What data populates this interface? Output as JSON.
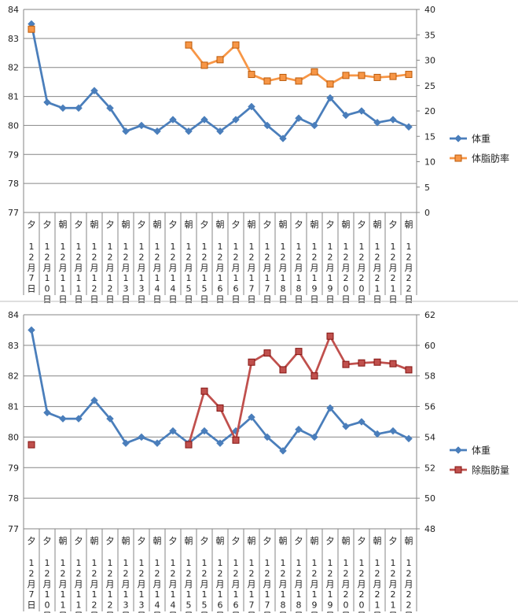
{
  "chart_data": [
    {
      "type": "line",
      "categories": [
        {
          "period": "夕",
          "month": "12",
          "day": "7"
        },
        {
          "period": "夕",
          "month": "12",
          "day": "10"
        },
        {
          "period": "朝",
          "month": "12",
          "day": "11"
        },
        {
          "period": "夕",
          "month": "12",
          "day": "11"
        },
        {
          "period": "朝",
          "month": "12",
          "day": "12"
        },
        {
          "period": "夕",
          "month": "12",
          "day": "12"
        },
        {
          "period": "朝",
          "month": "12",
          "day": "13"
        },
        {
          "period": "夕",
          "month": "12",
          "day": "13"
        },
        {
          "period": "朝",
          "month": "12",
          "day": "14"
        },
        {
          "period": "夕",
          "month": "12",
          "day": "14"
        },
        {
          "period": "朝",
          "month": "12",
          "day": "15"
        },
        {
          "period": "夕",
          "month": "12",
          "day": "15"
        },
        {
          "period": "朝",
          "month": "12",
          "day": "16"
        },
        {
          "period": "夕",
          "month": "12",
          "day": "16"
        },
        {
          "period": "朝",
          "month": "12",
          "day": "17"
        },
        {
          "period": "夕",
          "month": "12",
          "day": "17"
        },
        {
          "period": "朝",
          "month": "12",
          "day": "18"
        },
        {
          "period": "夕",
          "month": "12",
          "day": "18"
        },
        {
          "period": "朝",
          "month": "12",
          "day": "19"
        },
        {
          "period": "夕",
          "month": "12",
          "day": "19"
        },
        {
          "period": "朝",
          "month": "12",
          "day": "20"
        },
        {
          "period": "夕",
          "month": "12",
          "day": "20"
        },
        {
          "period": "朝",
          "month": "12",
          "day": "21"
        },
        {
          "period": "夕",
          "month": "12",
          "day": "21"
        },
        {
          "period": "朝",
          "month": "12",
          "day": "22"
        }
      ],
      "month_unit": "月",
      "day_unit": "日",
      "y_left": {
        "min": 77,
        "max": 84,
        "ticks": [
          77,
          78,
          79,
          80,
          81,
          82,
          83,
          84
        ]
      },
      "y_right": {
        "min": 0,
        "max": 40,
        "ticks": [
          0,
          5,
          10,
          15,
          20,
          25,
          30,
          35,
          40
        ]
      },
      "series": [
        {
          "name": "体重",
          "axis": "left",
          "color": "#4a7ebb",
          "marker": "diamond",
          "values": [
            83.5,
            80.8,
            80.6,
            80.6,
            81.2,
            80.6,
            79.8,
            80.0,
            79.8,
            80.2,
            79.8,
            80.2,
            79.8,
            80.2,
            80.65,
            80.0,
            79.55,
            80.25,
            80.0,
            80.95,
            80.35,
            80.5,
            80.1,
            80.2,
            79.95
          ]
        },
        {
          "name": "体脂肪率",
          "axis": "right",
          "color": "#f79646",
          "marker": "square",
          "values": [
            36.1,
            null,
            null,
            null,
            null,
            null,
            null,
            null,
            null,
            null,
            33.0,
            29.0,
            30.1,
            33.0,
            27.2,
            25.9,
            26.6,
            25.9,
            27.7,
            25.3,
            27.0,
            27.0,
            26.6,
            26.8,
            27.2
          ]
        }
      ],
      "legend": "right"
    },
    {
      "type": "line",
      "categories": "same",
      "y_left": {
        "min": 77,
        "max": 84,
        "ticks": [
          77,
          78,
          79,
          80,
          81,
          82,
          83,
          84
        ]
      },
      "y_right": {
        "min": 48,
        "max": 62,
        "ticks": [
          48,
          50,
          52,
          54,
          56,
          58,
          60,
          62
        ]
      },
      "series": [
        {
          "name": "体重",
          "axis": "left",
          "color": "#4a7ebb",
          "marker": "diamond",
          "values": [
            83.5,
            80.8,
            80.6,
            80.6,
            81.2,
            80.6,
            79.8,
            80.0,
            79.8,
            80.2,
            79.8,
            80.2,
            79.8,
            80.2,
            80.65,
            80.0,
            79.55,
            80.25,
            80.0,
            80.95,
            80.35,
            80.5,
            80.1,
            80.2,
            79.95
          ]
        },
        {
          "name": "除脂肪量",
          "axis": "right",
          "color": "#c0504d",
          "marker": "square",
          "values": [
            53.5,
            null,
            null,
            null,
            null,
            null,
            null,
            null,
            null,
            null,
            53.5,
            57.0,
            55.9,
            53.8,
            58.9,
            59.5,
            58.4,
            59.6,
            58.0,
            60.6,
            58.75,
            58.85,
            58.9,
            58.8,
            58.4
          ]
        }
      ],
      "legend": "right"
    }
  ]
}
